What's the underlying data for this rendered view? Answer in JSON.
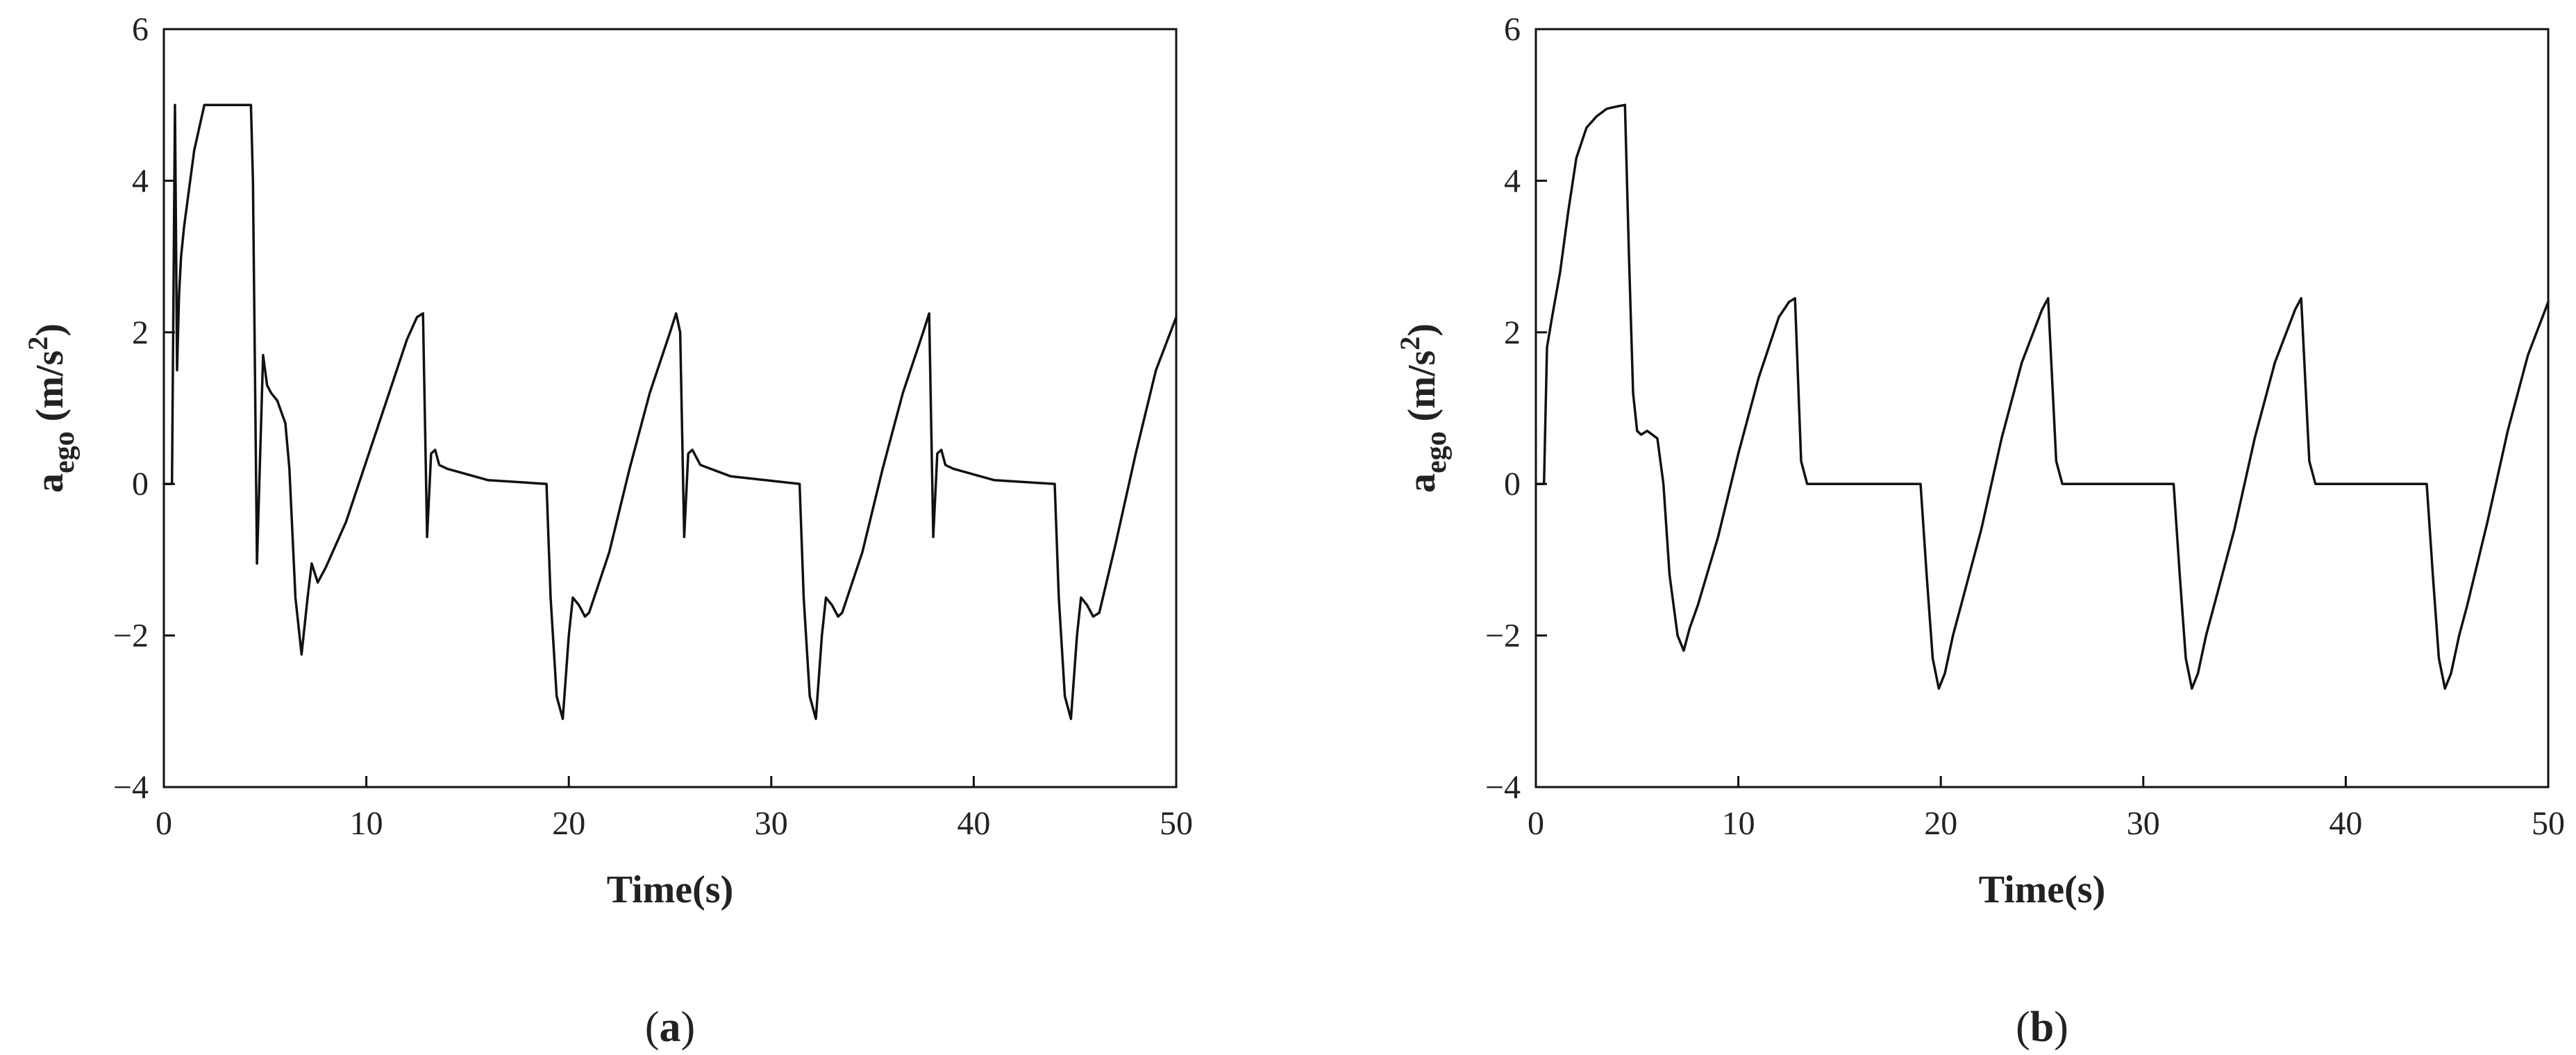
{
  "chart_data": [
    {
      "type": "line",
      "xlabel": "Time(s)",
      "ylabel": {
        "main": "a",
        "sub": "ego",
        "unit_open": " (m/s",
        "unit_sup": "2",
        "unit_close": ")"
      },
      "xlim": [
        0,
        50
      ],
      "ylim": [
        -4,
        6
      ],
      "xticks": [
        0,
        10,
        20,
        30,
        40,
        50
      ],
      "yticks": [
        -4,
        -2,
        0,
        2,
        4,
        6
      ],
      "xtick_labels": [
        "0",
        "10",
        "20",
        "30",
        "40",
        "50"
      ],
      "ytick_labels": [
        "−4",
        "−2",
        "0",
        "2",
        "4",
        "6"
      ],
      "grid": false,
      "panel_label": {
        "open": "(",
        "letter": "a",
        "close": ")"
      },
      "series": [
        {
          "x": [
            0,
            0.4,
            0.55,
            0.65,
            0.75,
            0.85,
            1.0,
            1.5,
            2.0,
            4.3,
            4.4,
            4.6,
            4.9,
            5.1,
            5.3,
            5.6,
            6.0,
            6.2,
            6.5,
            6.8,
            7.1,
            7.3,
            7.6,
            8.0,
            9.0,
            10.0,
            11.0,
            12.0,
            12.5,
            12.8,
            13.0,
            13.2,
            13.4,
            13.6,
            14.0,
            16.0,
            18.9,
            19.1,
            19.4,
            19.7,
            20.0,
            20.2,
            20.5,
            20.8,
            21.0,
            22.0,
            23.0,
            24.0,
            25.0,
            25.3,
            25.5,
            25.7,
            25.9,
            26.1,
            26.5,
            28.0,
            31.4,
            31.6,
            31.9,
            32.2,
            32.5,
            32.7,
            33.0,
            33.3,
            33.5,
            34.5,
            35.5,
            36.5,
            37.5,
            37.8,
            38.0,
            38.2,
            38.4,
            38.6,
            39.0,
            41.0,
            44.0,
            44.2,
            44.5,
            44.8,
            45.1,
            45.3,
            45.6,
            45.9,
            46.2,
            47.0,
            48.0,
            49.0,
            50.0
          ],
          "y": [
            0,
            0,
            5.0,
            1.5,
            2.5,
            3.0,
            3.4,
            4.4,
            5.0,
            5.0,
            4.0,
            -1.05,
            1.7,
            1.3,
            1.2,
            1.1,
            0.8,
            0.2,
            -1.5,
            -2.25,
            -1.5,
            -1.05,
            -1.3,
            -1.1,
            -0.5,
            0.3,
            1.1,
            1.9,
            2.2,
            2.25,
            -0.7,
            0.4,
            0.45,
            0.25,
            0.2,
            0.05,
            0.0,
            -1.5,
            -2.8,
            -3.1,
            -2.0,
            -1.5,
            -1.6,
            -1.75,
            -1.7,
            -0.9,
            0.2,
            1.2,
            2.0,
            2.25,
            2.0,
            -0.7,
            0.4,
            0.45,
            0.25,
            0.1,
            0.0,
            -1.5,
            -2.8,
            -3.1,
            -2.0,
            -1.5,
            -1.6,
            -1.75,
            -1.7,
            -0.9,
            0.2,
            1.2,
            2.0,
            2.25,
            -0.7,
            0.4,
            0.45,
            0.25,
            0.2,
            0.05,
            0.0,
            -1.5,
            -2.8,
            -3.1,
            -2.0,
            -1.5,
            -1.6,
            -1.75,
            -1.7,
            -0.8,
            0.4,
            1.5,
            2.2
          ]
        }
      ]
    },
    {
      "type": "line",
      "xlabel": "Time(s)",
      "ylabel": {
        "main": "a",
        "sub": "ego",
        "unit_open": " (m/s",
        "unit_sup": "2",
        "unit_close": ")"
      },
      "xlim": [
        0,
        50
      ],
      "ylim": [
        -4,
        6
      ],
      "xticks": [
        0,
        10,
        20,
        30,
        40,
        50
      ],
      "yticks": [
        -4,
        -2,
        0,
        2,
        4,
        6
      ],
      "xtick_labels": [
        "0",
        "10",
        "20",
        "30",
        "40",
        "50"
      ],
      "ytick_labels": [
        "−4",
        "−2",
        "0",
        "2",
        "4",
        "6"
      ],
      "grid": false,
      "panel_label": {
        "open": "(",
        "letter": "b",
        "close": ")"
      },
      "series": [
        {
          "x": [
            0,
            0.4,
            0.55,
            0.8,
            1.2,
            1.6,
            2.0,
            2.5,
            3.0,
            3.5,
            4.0,
            4.4,
            4.6,
            4.8,
            5.0,
            5.2,
            5.5,
            6.0,
            6.3,
            6.6,
            7.0,
            7.3,
            7.6,
            8.0,
            9.0,
            10.0,
            11.0,
            12.0,
            12.5,
            12.8,
            13.1,
            13.4,
            15.0,
            19.0,
            19.3,
            19.6,
            19.9,
            20.2,
            20.6,
            21.0,
            22.0,
            23.0,
            24.0,
            25.0,
            25.3,
            25.7,
            26.0,
            28.0,
            31.5,
            31.8,
            32.1,
            32.4,
            32.7,
            33.1,
            33.5,
            34.5,
            35.5,
            36.5,
            37.5,
            37.8,
            38.2,
            38.5,
            41.0,
            44.0,
            44.3,
            44.6,
            44.9,
            45.2,
            45.6,
            46.0,
            47.0,
            48.0,
            49.0,
            50.0
          ],
          "y": [
            0,
            0,
            1.8,
            2.2,
            2.8,
            3.6,
            4.3,
            4.7,
            4.85,
            4.95,
            4.98,
            5.0,
            3.0,
            1.2,
            0.7,
            0.65,
            0.7,
            0.6,
            0.0,
            -1.2,
            -2.0,
            -2.2,
            -1.9,
            -1.6,
            -0.7,
            0.4,
            1.4,
            2.2,
            2.4,
            2.45,
            0.3,
            0.0,
            0.0,
            0.0,
            -1.2,
            -2.3,
            -2.7,
            -2.5,
            -2.0,
            -1.6,
            -0.6,
            0.6,
            1.6,
            2.3,
            2.45,
            0.3,
            0.0,
            0.0,
            0.0,
            -1.2,
            -2.3,
            -2.7,
            -2.5,
            -2.0,
            -1.6,
            -0.6,
            0.6,
            1.6,
            2.3,
            2.45,
            0.3,
            0.0,
            0.0,
            0.0,
            -1.2,
            -2.3,
            -2.7,
            -2.5,
            -2.0,
            -1.6,
            -0.5,
            0.7,
            1.7,
            2.4
          ]
        }
      ]
    }
  ]
}
